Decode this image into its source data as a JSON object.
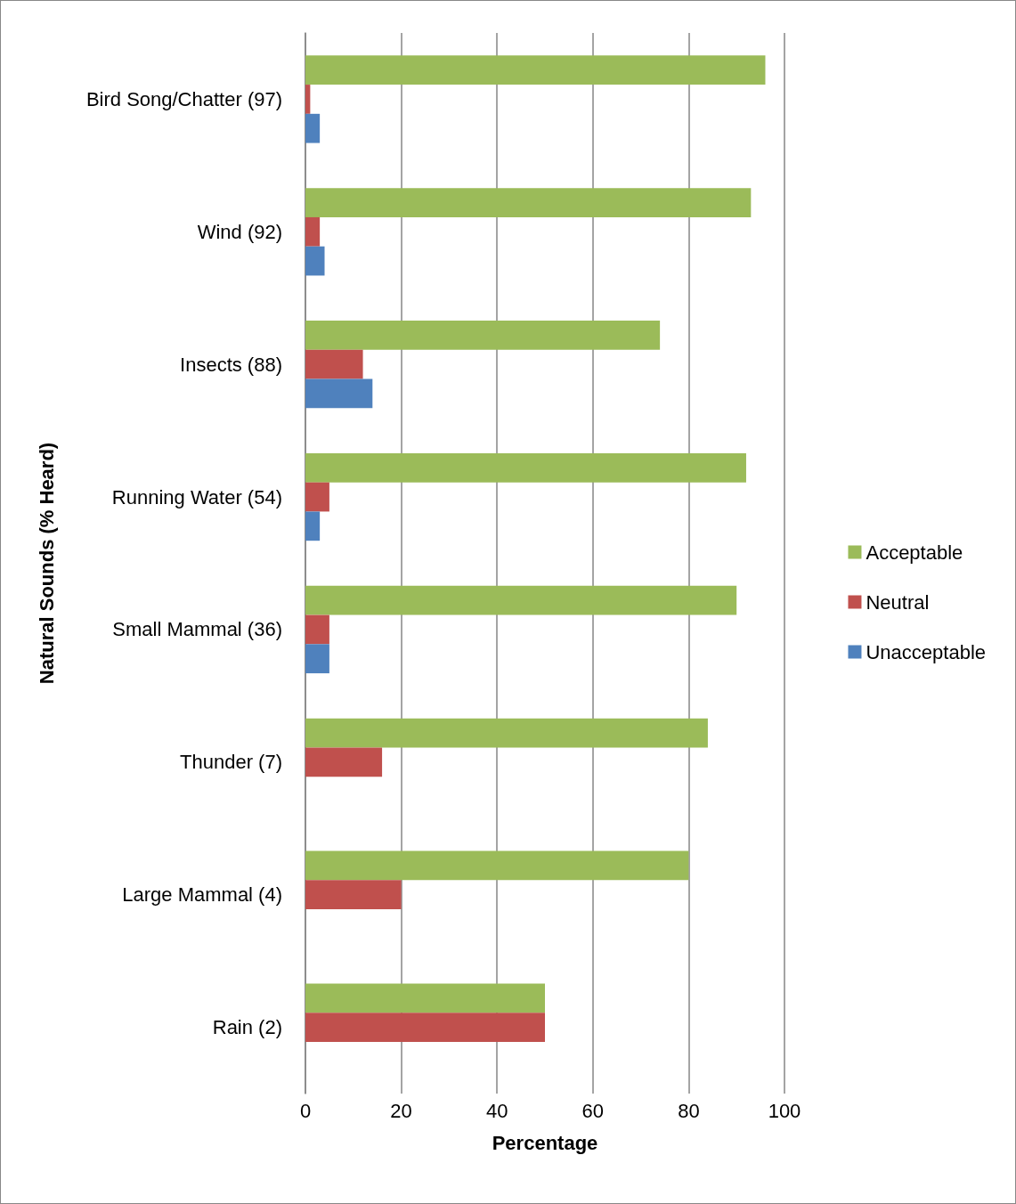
{
  "chart_data": {
    "type": "bar",
    "orientation": "horizontal",
    "xlabel": "Percentage",
    "ylabel": "Natural Sounds (% Heard)",
    "categories": [
      "Bird Song/Chatter (97)",
      "Wind (92)",
      "Insects (88)",
      "Running Water (54)",
      "Small Mammal (36)",
      "Thunder (7)",
      "Large Mammal (4)",
      "Rain (2)"
    ],
    "series": [
      {
        "name": "Acceptable",
        "color": "#9bbb59",
        "values": [
          96,
          93,
          74,
          92,
          90,
          84,
          80,
          50
        ]
      },
      {
        "name": "Neutral",
        "color": "#c0504d",
        "values": [
          1,
          3,
          12,
          5,
          5,
          16,
          20,
          50
        ]
      },
      {
        "name": "Unacceptable",
        "color": "#4f81bd",
        "values": [
          3,
          4,
          14,
          3,
          5,
          0,
          0,
          0
        ]
      }
    ],
    "xlim": [
      0,
      100
    ],
    "xticks": [
      0,
      20,
      40,
      60,
      80,
      100
    ],
    "grid": "x",
    "legend": "right"
  }
}
